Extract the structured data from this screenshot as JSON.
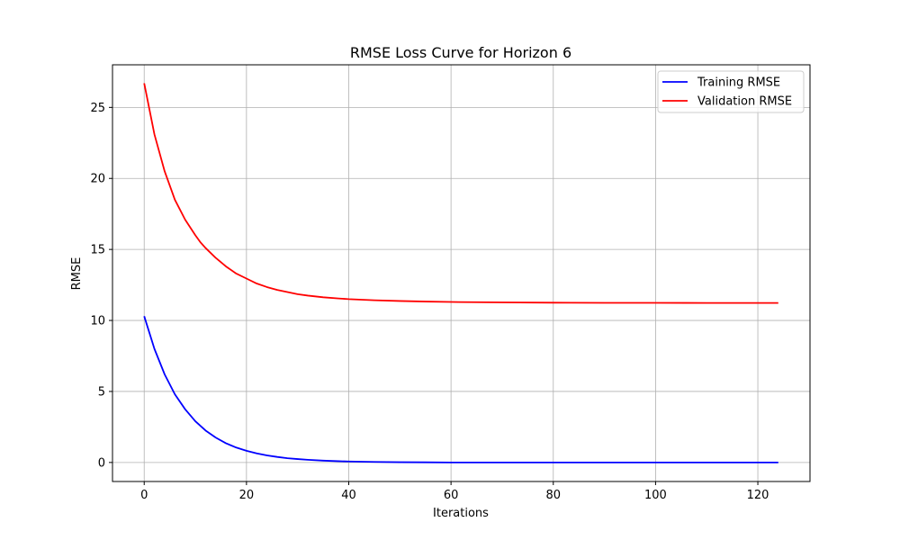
{
  "chart_data": {
    "type": "line",
    "title": "RMSE Loss Curve for Horizon 6",
    "xlabel": "Iterations",
    "ylabel": "RMSE",
    "xlim": [
      -6.2,
      130.2
    ],
    "ylim": [
      -1.34,
      28.0
    ],
    "xticks": [
      0,
      20,
      40,
      60,
      80,
      100,
      120
    ],
    "yticks": [
      0,
      5,
      10,
      15,
      20,
      25
    ],
    "grid": true,
    "legend_position": "top-right",
    "series": [
      {
        "name": "Training RMSE",
        "color": "#0000ff",
        "x": [
          0,
          2,
          4,
          6,
          8,
          10,
          12,
          14,
          16,
          18,
          20,
          22,
          24,
          26,
          28,
          30,
          32,
          35,
          38,
          40,
          45,
          50,
          55,
          60,
          70,
          80,
          90,
          100,
          110,
          124
        ],
        "y": [
          10.3,
          8.0,
          6.2,
          4.8,
          3.75,
          2.9,
          2.25,
          1.75,
          1.35,
          1.05,
          0.82,
          0.64,
          0.5,
          0.39,
          0.3,
          0.24,
          0.19,
          0.13,
          0.09,
          0.07,
          0.04,
          0.02,
          0.01,
          0.0,
          0.0,
          0.0,
          0.0,
          0.0,
          0.0,
          0.0
        ]
      },
      {
        "name": "Validation RMSE",
        "color": "#ff0000",
        "x": [
          0,
          1,
          2,
          4,
          6,
          8,
          10,
          11,
          12,
          14,
          16,
          18,
          20,
          22,
          24,
          26,
          28,
          30,
          32,
          35,
          38,
          40,
          45,
          50,
          55,
          60,
          70,
          80,
          90,
          100,
          110,
          124
        ],
        "y": [
          26.7,
          24.9,
          23.1,
          20.5,
          18.5,
          17.1,
          16.0,
          15.5,
          15.1,
          14.4,
          13.8,
          13.3,
          12.95,
          12.6,
          12.35,
          12.15,
          12.0,
          11.85,
          11.75,
          11.63,
          11.55,
          11.5,
          11.42,
          11.37,
          11.33,
          11.3,
          11.27,
          11.25,
          11.24,
          11.24,
          11.23,
          11.23
        ]
      }
    ]
  }
}
